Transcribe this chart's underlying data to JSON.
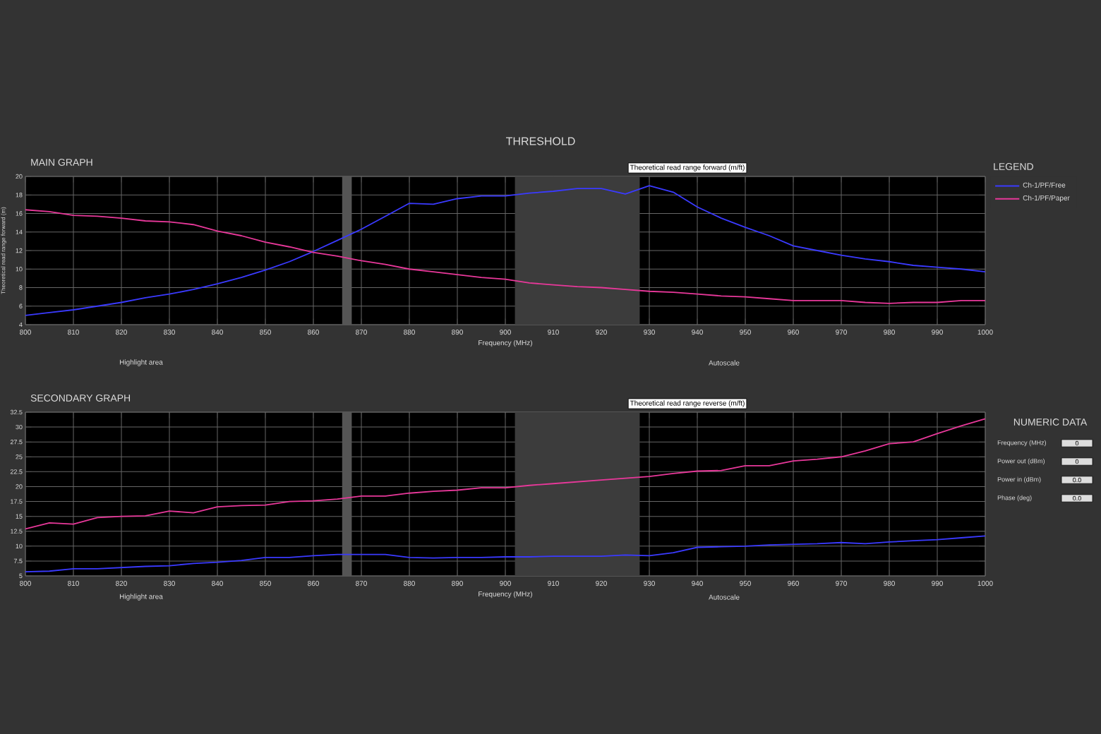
{
  "chart_data": [
    {
      "type": "line",
      "title": "MAIN GRAPH",
      "xlabel": "Frequency (MHz)",
      "ylabel": "Theoretical read range forward (m)",
      "annotations": [
        "THRESHOLD",
        "Theoretical read range forward (m/ft)",
        "Highlight area",
        "Autoscale"
      ],
      "x": [
        800,
        805,
        810,
        815,
        820,
        825,
        830,
        835,
        840,
        845,
        850,
        855,
        860,
        865,
        870,
        875,
        880,
        885,
        890,
        895,
        900,
        905,
        910,
        915,
        920,
        925,
        930,
        935,
        940,
        945,
        950,
        955,
        960,
        965,
        970,
        975,
        980,
        985,
        990,
        995,
        1000
      ],
      "series": [
        {
          "name": "Ch-1/PF/Free",
          "color": "#3a3aff",
          "values": [
            5.0,
            5.3,
            5.6,
            6.0,
            6.4,
            6.9,
            7.3,
            7.8,
            8.4,
            9.1,
            9.9,
            10.8,
            11.9,
            13.1,
            14.3,
            15.7,
            17.1,
            17.0,
            17.6,
            17.9,
            17.9,
            18.2,
            18.4,
            18.7,
            18.7,
            18.1,
            19.0,
            18.3,
            16.7,
            15.5,
            14.5,
            13.6,
            12.5,
            12.0,
            11.5,
            11.1,
            10.8,
            10.4,
            10.2,
            10.0,
            9.7
          ]
        },
        {
          "name": "Ch-1/PF/Paper",
          "color": "#e8389a",
          "values": [
            16.4,
            16.2,
            15.8,
            15.7,
            15.5,
            15.2,
            15.1,
            14.8,
            14.1,
            13.6,
            12.9,
            12.4,
            11.8,
            11.4,
            10.9,
            10.5,
            10.0,
            9.7,
            9.4,
            9.1,
            8.9,
            8.5,
            8.3,
            8.1,
            8.0,
            7.8,
            7.6,
            7.5,
            7.3,
            7.1,
            7.0,
            6.8,
            6.6,
            6.6,
            6.6,
            6.4,
            6.3,
            6.4,
            6.4,
            6.6,
            6.6
          ]
        }
      ],
      "xlim": [
        800,
        1000
      ],
      "xticks": [
        800,
        810,
        820,
        830,
        840,
        850,
        860,
        870,
        880,
        890,
        900,
        910,
        920,
        930,
        940,
        950,
        960,
        970,
        980,
        990,
        1000
      ],
      "ylim": [
        4,
        20
      ],
      "yticks": [
        4,
        6,
        8,
        10,
        12,
        14,
        16,
        18,
        20
      ],
      "bands": [
        {
          "axis": "x",
          "from": 866,
          "to": 868,
          "color": "#555555"
        },
        {
          "axis": "x",
          "from": 902,
          "to": 928,
          "color": "#3c3c3c"
        }
      ],
      "grid": true,
      "legend": "right",
      "legend_title": "LEGEND",
      "line_style": "solid"
    },
    {
      "type": "line",
      "title": "SECONDARY GRAPH",
      "xlabel": "Frequency (MHz)",
      "annotations": [
        "Theoretical read range reverse (m/ft)",
        "Highlight area",
        "Autoscale"
      ],
      "x": [
        800,
        805,
        810,
        815,
        820,
        825,
        830,
        835,
        840,
        845,
        850,
        855,
        860,
        865,
        870,
        875,
        880,
        885,
        890,
        895,
        900,
        905,
        910,
        915,
        920,
        925,
        930,
        935,
        940,
        945,
        950,
        955,
        960,
        965,
        970,
        975,
        980,
        985,
        990,
        995,
        1000
      ],
      "series": [
        {
          "color": "#3a3aff",
          "values": [
            5.7,
            5.8,
            6.2,
            6.2,
            6.4,
            6.6,
            6.7,
            7.1,
            7.3,
            7.6,
            8.1,
            8.1,
            8.4,
            8.6,
            8.6,
            8.6,
            8.1,
            8.0,
            8.1,
            8.1,
            8.2,
            8.2,
            8.3,
            8.3,
            8.3,
            8.5,
            8.4,
            8.9,
            9.8,
            9.9,
            10.0,
            10.2,
            10.3,
            10.4,
            10.6,
            10.4,
            10.7,
            10.9,
            11.1,
            11.4,
            11.7
          ]
        },
        {
          "color": "#e8389a",
          "values": [
            12.9,
            13.9,
            13.7,
            14.8,
            15.0,
            15.1,
            15.9,
            15.6,
            16.6,
            16.8,
            16.9,
            17.5,
            17.6,
            17.9,
            18.4,
            18.4,
            18.9,
            19.2,
            19.4,
            19.8,
            19.8,
            20.2,
            20.5,
            20.8,
            21.1,
            21.4,
            21.7,
            22.2,
            22.6,
            22.7,
            23.5,
            23.5,
            24.3,
            24.6,
            25.0,
            26.0,
            27.2,
            27.5,
            28.9,
            30.2,
            31.4
          ]
        }
      ],
      "xlim": [
        800,
        1000
      ],
      "xticks": [
        800,
        810,
        820,
        830,
        840,
        850,
        860,
        870,
        880,
        890,
        900,
        910,
        920,
        930,
        940,
        950,
        960,
        970,
        980,
        990,
        1000
      ],
      "ylim": [
        5,
        32.5
      ],
      "yticks": [
        5,
        7.5,
        10,
        12.5,
        15,
        17.5,
        20,
        22.5,
        25,
        27.5,
        30,
        32.5
      ],
      "bands": [
        {
          "axis": "x",
          "from": 866,
          "to": 868,
          "color": "#555555"
        },
        {
          "axis": "x",
          "from": 902,
          "to": 928,
          "color": "#3c3c3c"
        }
      ],
      "grid": true,
      "line_style": "solid"
    },
    {
      "type": "other",
      "title": "NUMERIC DATA",
      "annotations": [
        "Frequency (MHz)",
        "0",
        "Power out (dBm)",
        "0",
        "Power in (dBm)",
        "0.0",
        "Phase (deg)",
        "0.0"
      ]
    }
  ]
}
